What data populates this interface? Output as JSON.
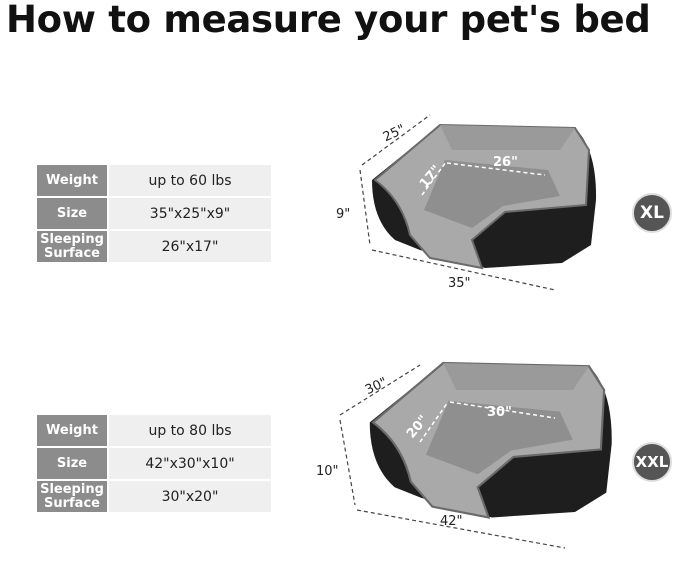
{
  "title": "How to measure your pet's bed",
  "sizes": [
    {
      "badge": "XL",
      "specs": [
        {
          "label": "Weight",
          "value": "up to 60 lbs"
        },
        {
          "label": "Size",
          "value": "35\"x25\"x9\""
        },
        {
          "label": "Sleeping Surface",
          "value": "26\"x17\""
        }
      ],
      "dims": {
        "depth": "25\"",
        "height": "9\"",
        "length": "35\"",
        "inner_width": "17\"",
        "inner_length": "26\""
      }
    },
    {
      "badge": "XXL",
      "specs": [
        {
          "label": "Weight",
          "value": "up to 80 lbs"
        },
        {
          "label": "Size",
          "value": "42\"x30\"x10\""
        },
        {
          "label": "Sleeping Surface",
          "value": "30\"x20\""
        }
      ],
      "dims": {
        "depth": "30\"",
        "height": "10\"",
        "length": "42\"",
        "inner_width": "20\"",
        "inner_length": "30\""
      }
    }
  ],
  "colors": {
    "label_bg": "#8c8c8c",
    "value_bg": "#efefef",
    "badge_bg": "#555555",
    "bed_body": "#1e1e1e",
    "bed_plush": "#a9a9a9"
  }
}
